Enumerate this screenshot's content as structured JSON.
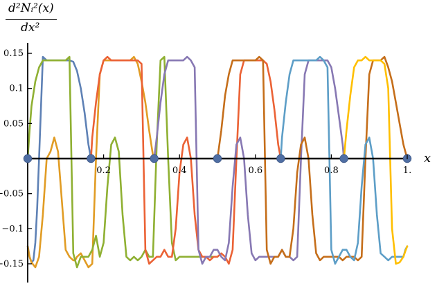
{
  "chart_data": {
    "type": "line",
    "title": "",
    "ylabel_numerator": "d²Nᵢ²(x)",
    "ylabel_denominator": "dx²",
    "xlabel": "x",
    "xlim": [
      0,
      1
    ],
    "ylim": [
      -0.16,
      0.16
    ],
    "x_ticks": [
      {
        "value": 0.2,
        "label": "0.2"
      },
      {
        "value": 0.4,
        "label": "0.4"
      },
      {
        "value": 0.6,
        "label": "0.6"
      },
      {
        "value": 0.8,
        "label": "0.8"
      },
      {
        "value": 1.0,
        "label": "1."
      }
    ],
    "y_ticks": [
      {
        "value": 0.15,
        "label": "0.15"
      },
      {
        "value": 0.1,
        "label": "0.1"
      },
      {
        "value": 0.05,
        "label": "0.05"
      },
      {
        "value": -0.05,
        "label": "−0.05"
      },
      {
        "value": -0.1,
        "label": "−0.1"
      },
      {
        "value": -0.15,
        "label": "−0.15"
      }
    ],
    "nodes": [
      0,
      0.1667,
      0.3333,
      0.5,
      0.6667,
      0.8333,
      1.0
    ],
    "series": [
      {
        "color": "#5e81b5",
        "x": [
          0.0,
          0.005,
          0.01,
          0.015,
          0.02,
          0.025,
          0.03,
          0.04,
          0.05,
          0.06,
          0.07,
          0.08,
          0.09,
          0.1,
          0.11,
          0.12,
          0.13,
          0.14,
          0.15,
          0.16,
          0.1667
        ],
        "y": [
          -0.125,
          -0.14,
          -0.148,
          -0.145,
          -0.12,
          -0.07,
          0.0,
          0.145,
          0.14,
          0.14,
          0.14,
          0.14,
          0.14,
          0.14,
          0.14,
          0.138,
          0.125,
          0.1,
          0.065,
          0.02,
          0.0
        ]
      },
      {
        "color": "#e19c24",
        "x": [
          0.0,
          0.005,
          0.01,
          0.02,
          0.03,
          0.04,
          0.05,
          0.06,
          0.07,
          0.08,
          0.09,
          0.1,
          0.11,
          0.12,
          0.125,
          0.13,
          0.14,
          0.15,
          0.16,
          0.17,
          0.18,
          0.19,
          0.2,
          0.21,
          0.22,
          0.23,
          0.24,
          0.25,
          0.26,
          0.27,
          0.28,
          0.29,
          0.3,
          0.31,
          0.32,
          0.33,
          0.3333
        ],
        "y": [
          -0.125,
          -0.14,
          -0.148,
          -0.155,
          -0.14,
          -0.08,
          0.0,
          0.01,
          0.03,
          0.01,
          -0.06,
          -0.13,
          -0.14,
          -0.145,
          -0.145,
          -0.14,
          -0.135,
          -0.145,
          -0.155,
          -0.15,
          0.0,
          0.12,
          0.14,
          0.14,
          0.14,
          0.14,
          0.14,
          0.14,
          0.14,
          0.14,
          0.145,
          0.135,
          0.11,
          0.08,
          0.04,
          0.005,
          0.0
        ]
      },
      {
        "color": "#8fb032",
        "x": [
          0.0,
          0.005,
          0.01,
          0.02,
          0.03,
          0.04,
          0.05,
          0.06,
          0.07,
          0.08,
          0.09,
          0.1,
          0.11,
          0.12,
          0.13,
          0.14,
          0.15,
          0.16,
          0.17,
          0.18,
          0.19,
          0.2,
          0.21,
          0.22,
          0.23,
          0.24,
          0.25,
          0.26,
          0.27,
          0.28,
          0.29,
          0.3,
          0.31,
          0.32,
          0.33,
          0.34,
          0.35,
          0.36,
          0.37,
          0.38,
          0.39,
          0.4,
          0.41,
          0.42,
          0.43,
          0.44,
          0.45,
          0.46,
          0.47,
          0.48,
          0.49,
          0.5
        ],
        "y": [
          0.0,
          0.04,
          0.075,
          0.11,
          0.13,
          0.14,
          0.14,
          0.14,
          0.14,
          0.14,
          0.14,
          0.14,
          0.145,
          -0.135,
          -0.155,
          -0.14,
          -0.14,
          -0.14,
          -0.13,
          -0.11,
          -0.14,
          -0.12,
          -0.04,
          0.02,
          0.03,
          0.01,
          -0.08,
          -0.14,
          -0.145,
          -0.14,
          -0.145,
          -0.14,
          -0.13,
          -0.14,
          -0.14,
          0.02,
          0.14,
          0.145,
          0.0,
          -0.12,
          -0.145,
          -0.14,
          -0.14,
          -0.14,
          -0.14,
          -0.14,
          -0.14,
          -0.14,
          -0.14,
          -0.14,
          -0.14,
          -0.14
        ]
      },
      {
        "color": "#eb6235",
        "x": [
          0.1667,
          0.17,
          0.18,
          0.19,
          0.2,
          0.21,
          0.22,
          0.23,
          0.24,
          0.25,
          0.26,
          0.27,
          0.28,
          0.29,
          0.3,
          0.31,
          0.32,
          0.33,
          0.34,
          0.35,
          0.36,
          0.37,
          0.38,
          0.39,
          0.4,
          0.41,
          0.42,
          0.43,
          0.44,
          0.45,
          0.46,
          0.47,
          0.48,
          0.49,
          0.5,
          0.51,
          0.52,
          0.53,
          0.54,
          0.55,
          0.56,
          0.57,
          0.58,
          0.59,
          0.6,
          0.61,
          0.62,
          0.63,
          0.64,
          0.65,
          0.66,
          0.6667
        ],
        "y": [
          0.0,
          0.03,
          0.08,
          0.12,
          0.14,
          0.145,
          0.14,
          0.14,
          0.14,
          0.14,
          0.14,
          0.14,
          0.14,
          0.14,
          0.135,
          -0.13,
          -0.15,
          -0.145,
          -0.14,
          -0.14,
          -0.13,
          -0.14,
          -0.14,
          -0.1,
          -0.02,
          0.02,
          0.03,
          0.0,
          -0.08,
          -0.13,
          -0.14,
          -0.14,
          -0.145,
          -0.14,
          -0.14,
          -0.135,
          -0.14,
          -0.15,
          -0.13,
          0.0,
          0.12,
          0.14,
          0.14,
          0.14,
          0.14,
          0.14,
          0.14,
          0.135,
          0.11,
          0.07,
          0.02,
          0.0
        ]
      },
      {
        "color": "#8778b3",
        "x": [
          0.3333,
          0.34,
          0.35,
          0.36,
          0.37,
          0.38,
          0.39,
          0.4,
          0.41,
          0.42,
          0.43,
          0.44,
          0.45,
          0.46,
          0.47,
          0.48,
          0.49,
          0.5,
          0.51,
          0.52,
          0.53,
          0.54,
          0.55,
          0.56,
          0.57,
          0.58,
          0.59,
          0.6,
          0.61,
          0.62,
          0.63,
          0.64,
          0.65,
          0.66,
          0.67,
          0.68,
          0.69,
          0.7,
          0.71,
          0.72,
          0.73,
          0.74,
          0.75,
          0.76,
          0.77,
          0.78,
          0.79,
          0.8,
          0.81,
          0.82,
          0.83,
          0.8333
        ],
        "y": [
          0.0,
          0.03,
          0.08,
          0.12,
          0.14,
          0.14,
          0.14,
          0.14,
          0.14,
          0.145,
          0.14,
          0.13,
          -0.13,
          -0.15,
          -0.14,
          -0.14,
          -0.13,
          -0.13,
          -0.14,
          -0.145,
          -0.12,
          -0.04,
          0.02,
          0.03,
          0.0,
          -0.08,
          -0.135,
          -0.145,
          -0.14,
          -0.14,
          -0.14,
          -0.14,
          -0.14,
          -0.14,
          -0.13,
          -0.14,
          -0.14,
          -0.145,
          -0.14,
          0.0,
          0.12,
          0.14,
          0.14,
          0.14,
          0.14,
          0.14,
          0.14,
          0.13,
          0.1,
          0.06,
          0.02,
          0.0
        ]
      },
      {
        "color": "#c56e1a",
        "x": [
          0.5,
          0.51,
          0.52,
          0.53,
          0.54,
          0.55,
          0.56,
          0.57,
          0.58,
          0.59,
          0.6,
          0.61,
          0.62,
          0.63,
          0.64,
          0.65,
          0.66,
          0.67,
          0.68,
          0.69,
          0.7,
          0.71,
          0.72,
          0.73,
          0.74,
          0.75,
          0.76,
          0.77,
          0.78,
          0.79,
          0.8,
          0.81,
          0.82,
          0.83,
          0.84,
          0.85,
          0.86,
          0.87,
          0.88,
          0.89,
          0.9,
          0.91,
          0.92,
          0.93,
          0.94,
          0.95,
          0.96,
          0.97,
          0.98,
          0.99,
          1.0
        ],
        "y": [
          0.0,
          0.04,
          0.09,
          0.12,
          0.14,
          0.14,
          0.14,
          0.14,
          0.14,
          0.14,
          0.14,
          0.145,
          0.14,
          -0.13,
          -0.15,
          -0.14,
          -0.14,
          -0.13,
          -0.14,
          -0.14,
          -0.1,
          -0.02,
          0.02,
          0.03,
          0.0,
          -0.08,
          -0.135,
          -0.145,
          -0.14,
          -0.14,
          -0.14,
          -0.14,
          -0.14,
          -0.145,
          -0.14,
          -0.14,
          -0.14,
          -0.145,
          -0.14,
          0.0,
          0.12,
          0.14,
          0.14,
          0.14,
          0.145,
          0.13,
          0.11,
          0.08,
          0.05,
          0.02,
          0.0
        ]
      },
      {
        "color": "#5d9ec7",
        "x": [
          0.6667,
          0.67,
          0.68,
          0.69,
          0.7,
          0.71,
          0.72,
          0.73,
          0.74,
          0.75,
          0.76,
          0.77,
          0.78,
          0.79,
          0.8,
          0.81,
          0.82,
          0.83,
          0.84,
          0.85,
          0.86,
          0.87,
          0.88,
          0.89,
          0.9,
          0.91,
          0.92,
          0.93,
          0.94,
          0.95,
          0.96,
          0.97,
          0.98,
          0.99,
          0.995,
          1.0
        ],
        "y": [
          0.0,
          0.03,
          0.08,
          0.12,
          0.14,
          0.14,
          0.14,
          0.14,
          0.14,
          0.14,
          0.14,
          0.145,
          0.14,
          0.13,
          -0.13,
          -0.15,
          -0.14,
          -0.13,
          -0.13,
          -0.14,
          -0.145,
          -0.12,
          -0.04,
          0.02,
          0.03,
          0.0,
          -0.08,
          -0.135,
          -0.14,
          -0.145,
          -0.14,
          -0.14,
          -0.14,
          -0.14,
          -0.13,
          -0.125
        ]
      },
      {
        "color": "#ffbf00",
        "x": [
          0.8333,
          0.84,
          0.85,
          0.86,
          0.87,
          0.88,
          0.89,
          0.9,
          0.91,
          0.92,
          0.93,
          0.94,
          0.95,
          0.96,
          0.97,
          0.98,
          0.99,
          0.995,
          1.0
        ],
        "y": [
          0.0,
          0.04,
          0.09,
          0.13,
          0.14,
          0.14,
          0.145,
          0.14,
          0.14,
          0.14,
          0.14,
          0.135,
          0.1,
          -0.1,
          -0.15,
          -0.148,
          -0.14,
          -0.132,
          -0.125
        ]
      }
    ]
  }
}
